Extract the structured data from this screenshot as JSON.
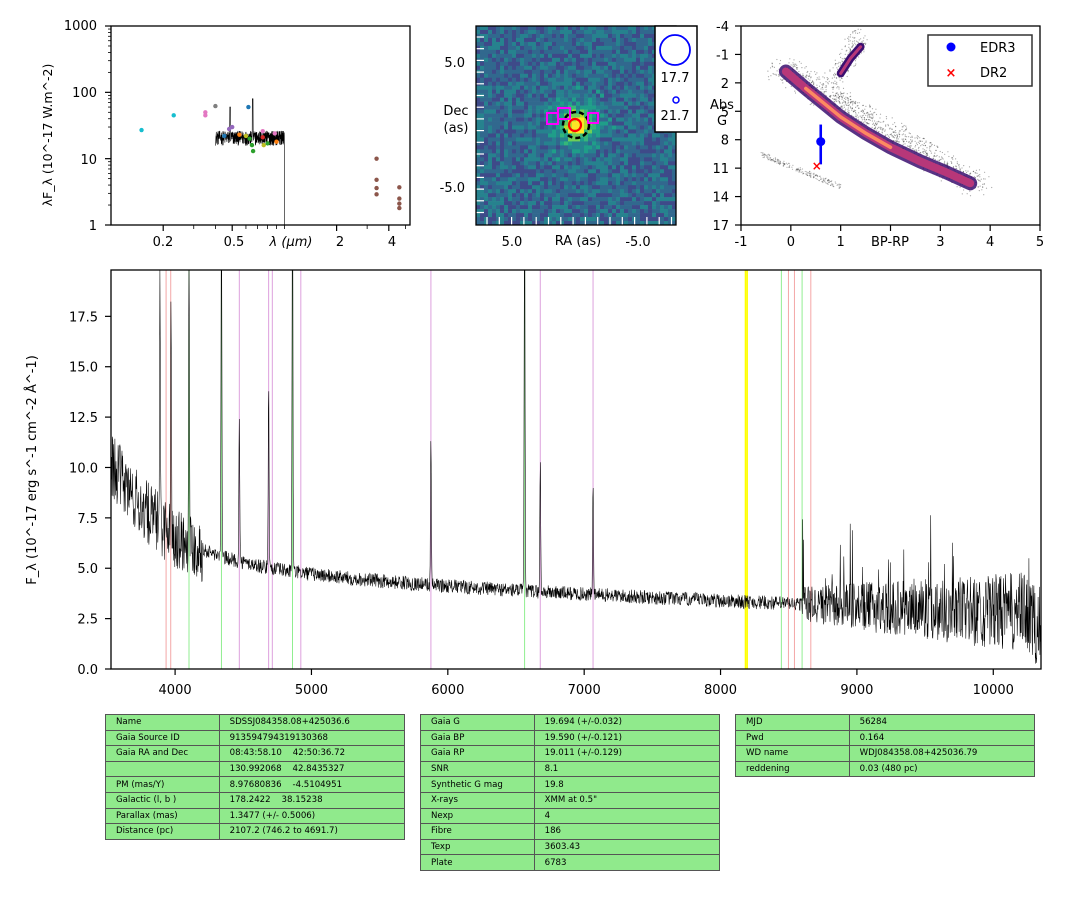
{
  "sed": {
    "ylabel": "λF_λ (10^-17 W.m^-2)",
    "y_ticks": [
      "1000",
      "100",
      "10",
      "1"
    ],
    "x_ticks": [
      "0.2",
      "0.5",
      "λ (μm)",
      "2",
      "4"
    ],
    "points": [
      {
        "x": 0.15,
        "y": 27,
        "color": "#17becf"
      },
      {
        "x": 0.23,
        "y": 45,
        "color": "#17becf"
      },
      {
        "x": 0.35,
        "y": 50,
        "color": "#e377c2"
      },
      {
        "x": 0.35,
        "y": 45,
        "color": "#e377c2"
      },
      {
        "x": 0.4,
        "y": 62,
        "color": "#7f7f7f"
      },
      {
        "x": 0.45,
        "y": 22,
        "color": "#1f77b4"
      },
      {
        "x": 0.48,
        "y": 28,
        "color": "#9467bd"
      },
      {
        "x": 0.5,
        "y": 30,
        "color": "#9467bd"
      },
      {
        "x": 0.55,
        "y": 23,
        "color": "#ff7f0e"
      },
      {
        "x": 0.6,
        "y": 22,
        "color": "#bcbd22"
      },
      {
        "x": 0.62,
        "y": 60,
        "color": "#1f77b4"
      },
      {
        "x": 0.63,
        "y": 20,
        "color": "#2ca02c"
      },
      {
        "x": 0.65,
        "y": 16,
        "color": "#2ca02c"
      },
      {
        "x": 0.66,
        "y": 13,
        "color": "#2ca02c"
      },
      {
        "x": 0.75,
        "y": 21,
        "color": "#d62728"
      },
      {
        "x": 0.75,
        "y": 26,
        "color": "#e377c2"
      },
      {
        "x": 0.76,
        "y": 16,
        "color": "#bcbd22"
      },
      {
        "x": 0.8,
        "y": 17,
        "color": "#2ca02c"
      },
      {
        "x": 0.88,
        "y": 24,
        "color": "#e377c2"
      },
      {
        "x": 0.9,
        "y": 18,
        "color": "#ff7f0e"
      },
      {
        "x": 3.4,
        "y": 10,
        "color": "#8c564b"
      },
      {
        "x": 3.4,
        "y": 4.8,
        "color": "#8c564b"
      },
      {
        "x": 3.4,
        "y": 3.6,
        "color": "#8c564b"
      },
      {
        "x": 3.4,
        "y": 2.9,
        "color": "#8c564b"
      },
      {
        "x": 4.6,
        "y": 3.7,
        "color": "#8c564b"
      },
      {
        "x": 4.6,
        "y": 2.5,
        "color": "#8c564b"
      },
      {
        "x": 4.6,
        "y": 2.1,
        "color": "#8c564b"
      },
      {
        "x": 4.6,
        "y": 1.8,
        "color": "#8c564b"
      }
    ]
  },
  "image": {
    "ylabel_line1": "Dec",
    "ylabel_line2": "(as)",
    "xlabel": "RA (as)",
    "x_ticks": [
      "5.0",
      "-5.0"
    ],
    "y_ticks": [
      "5.0",
      "-5.0"
    ],
    "legend_big": "17.7",
    "legend_small": "21.7"
  },
  "hrd": {
    "ylabel_line1": "Abs",
    "ylabel_line2": "G",
    "xlabel": "BP-RP",
    "x_ticks": [
      "-1",
      "0",
      "1",
      "3",
      "4",
      "5"
    ],
    "y_ticks": [
      "-4",
      "-1",
      "2",
      "5",
      "8",
      "11",
      "14",
      "17"
    ],
    "legend": [
      {
        "label": "EDR3",
        "color": "#0000ff"
      },
      {
        "label": "DR2",
        "color": "#ff0000"
      }
    ],
    "edr3": {
      "bp_rp": 0.6,
      "abs_g": 8.2,
      "err_low": 6.4,
      "err_high": 10.6
    },
    "dr2": {
      "bp_rp": 0.52,
      "abs_g": 10.8
    }
  },
  "spectrum": {
    "ylabel": "F_λ (10^-17 erg s^-1 cm^-2 Å^-1)",
    "x_ticks": [
      "4000",
      "5000",
      "6000",
      "7000",
      "8000",
      "9000",
      "10000"
    ],
    "y_ticks": [
      "0.0",
      "2.5",
      "5.0",
      "7.5",
      "10.0",
      "12.5",
      "15.0",
      "17.5"
    ],
    "xlim": [
      3530,
      10350
    ],
    "ylim": [
      0,
      19.8
    ],
    "lines": [
      {
        "wl": 3934,
        "color": "#f4a7a7"
      },
      {
        "wl": 3968,
        "color": "#f4a7a7"
      },
      {
        "wl": 4102,
        "color": "#90ee90"
      },
      {
        "wl": 4340,
        "color": "#90ee90"
      },
      {
        "wl": 4471,
        "color": "#dda0dd"
      },
      {
        "wl": 4686,
        "color": "#dda0dd"
      },
      {
        "wl": 4713,
        "color": "#dda0dd"
      },
      {
        "wl": 4861,
        "color": "#90ee90"
      },
      {
        "wl": 4922,
        "color": "#dda0dd"
      },
      {
        "wl": 5876,
        "color": "#dda0dd"
      },
      {
        "wl": 6563,
        "color": "#90ee90"
      },
      {
        "wl": 6678,
        "color": "#dda0dd"
      },
      {
        "wl": 7065,
        "color": "#dda0dd"
      },
      {
        "wl": 8183,
        "color": "#ffff00"
      },
      {
        "wl": 8195,
        "color": "#ffff00"
      },
      {
        "wl": 8446,
        "color": "#90ee90"
      },
      {
        "wl": 8498,
        "color": "#f4a7a7"
      },
      {
        "wl": 8542,
        "color": "#f4a7a7"
      },
      {
        "wl": 8598,
        "color": "#90ee90"
      },
      {
        "wl": 8662,
        "color": "#f4a7a7"
      }
    ],
    "emission": [
      {
        "wl": 3889,
        "h": 12.8
      },
      {
        "wl": 3970,
        "h": 13.3
      },
      {
        "wl": 4102,
        "h": 15.8
      },
      {
        "wl": 4340,
        "h": 18.2
      },
      {
        "wl": 4471,
        "h": 7.3
      },
      {
        "wl": 4686,
        "h": 9.5
      },
      {
        "wl": 4861,
        "h": 21
      },
      {
        "wl": 5876,
        "h": 7.2
      },
      {
        "wl": 6563,
        "h": 19.8
      },
      {
        "wl": 6678,
        "h": 6.6
      },
      {
        "wl": 7065,
        "h": 5.9
      }
    ]
  },
  "tables": [
    [
      [
        "Name",
        "SDSSJ084358.08+425036.6"
      ],
      [
        "Gaia Source ID",
        "913594794319130368"
      ],
      [
        "Gaia RA and Dec",
        "08:43:58.10    42:50:36.72"
      ],
      [
        "",
        "130.992068    42.8435327"
      ],
      [
        "PM (mas/Y)",
        "8.97680836    -4.5104951"
      ],
      [
        "Galactic (l, b )",
        "178.2422    38.15238"
      ],
      [
        "Parallax (mas)",
        "1.3477 (+/- 0.5006)"
      ],
      [
        "Distance (pc)",
        "2107.2 (746.2 to 4691.7)"
      ]
    ],
    [
      [
        "Gaia G",
        "19.694 (+/-0.032)"
      ],
      [
        "Gaia BP",
        "19.590 (+/-0.121)"
      ],
      [
        "Gaia RP",
        "19.011 (+/-0.129)"
      ],
      [
        "SNR",
        "8.1"
      ],
      [
        "Synthetic G mag",
        "19.8"
      ],
      [
        "X-rays",
        "XMM at 0.5\""
      ],
      [
        "Nexp",
        "4"
      ],
      [
        "Fibre",
        "186"
      ],
      [
        "Texp",
        "3603.43"
      ],
      [
        "Plate",
        "6783"
      ]
    ],
    [
      [
        "MJD",
        "56284"
      ],
      [
        "Pwd",
        "0.164"
      ],
      [
        "WD name",
        "WDJ084358.08+425036.79"
      ],
      [
        "reddening",
        "0.03 (480 pc)"
      ]
    ]
  ]
}
